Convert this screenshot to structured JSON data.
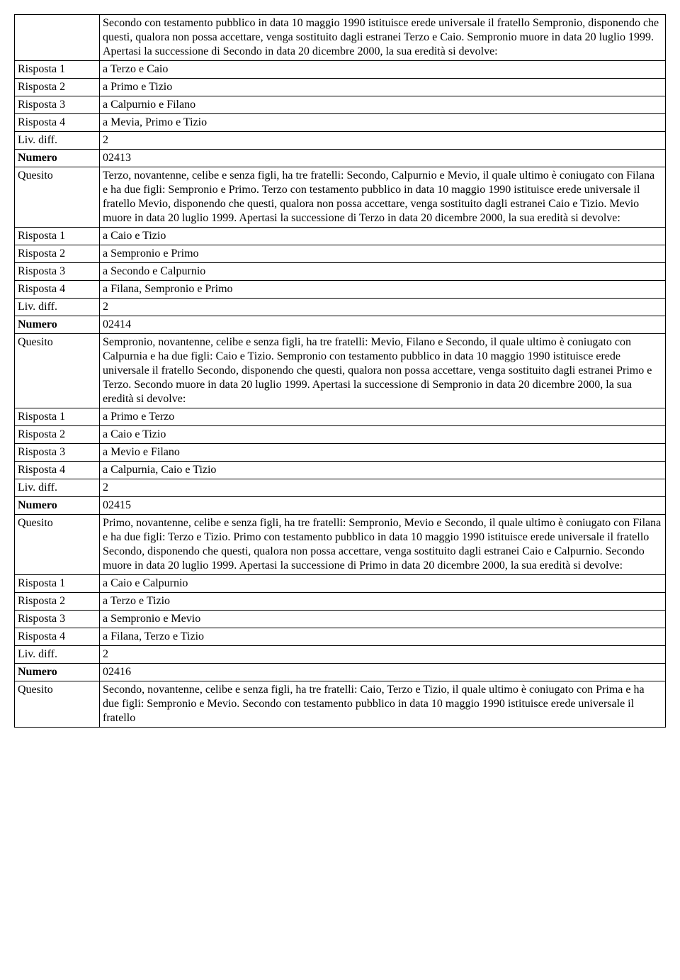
{
  "rows": [
    {
      "label": "",
      "value": "Secondo con testamento pubblico in data 10 maggio 1990 istituisce erede universale il fratello Sempronio, disponendo che questi, qualora non possa accettare, venga sostituito dagli estranei Terzo e Caio. Sempronio muore in data 20 luglio 1999. Apertasi la successione di Secondo in data 20 dicembre 2000, la sua eredità si devolve:"
    },
    {
      "label": "Risposta 1",
      "value": "a Terzo e Caio"
    },
    {
      "label": "Risposta 2",
      "value": "a Primo e Tizio"
    },
    {
      "label": "Risposta 3",
      "value": "a Calpurnio e Filano"
    },
    {
      "label": "Risposta 4",
      "value": "a Mevia, Primo e Tizio"
    },
    {
      "label": "Liv. diff.",
      "value": "2"
    },
    {
      "label": "Numero",
      "value": "02413"
    },
    {
      "label": "Quesito",
      "value": "Terzo, novantenne, celibe e senza figli, ha tre fratelli: Secondo, Calpurnio e Mevio, il quale ultimo è coniugato con Filana e ha due figli: Sempronio e Primo. Terzo con testamento pubblico in data 10 maggio 1990 istituisce erede universale il fratello Mevio, disponendo che questi, qualora non possa accettare, venga sostituito dagli estranei Caio e Tizio. Mevio muore in data 20 luglio 1999. Apertasi la successione di Terzo in data 20 dicembre 2000, la sua eredità si devolve:"
    },
    {
      "label": "Risposta 1",
      "value": "a Caio e Tizio"
    },
    {
      "label": "Risposta 2",
      "value": "a Sempronio e Primo"
    },
    {
      "label": "Risposta 3",
      "value": "a Secondo e Calpurnio"
    },
    {
      "label": "Risposta 4",
      "value": "a Filana, Sempronio e Primo"
    },
    {
      "label": "Liv. diff.",
      "value": "2"
    },
    {
      "label": "Numero",
      "value": "02414"
    },
    {
      "label": "Quesito",
      "value": "Sempronio, novantenne, celibe e senza figli, ha tre fratelli: Mevio, Filano e Secondo, il quale ultimo è coniugato con Calpurnia e ha due figli: Caio e Tizio. Sempronio con testamento pubblico in data 10 maggio 1990 istituisce erede universale il fratello Secondo, disponendo che questi, qualora non possa accettare, venga sostituito dagli estranei Primo e Terzo. Secondo muore in data 20 luglio 1999. Apertasi la successione di Sempronio in data 20 dicembre 2000, la sua eredità si devolve:"
    },
    {
      "label": "Risposta 1",
      "value": "a Primo e Terzo"
    },
    {
      "label": "Risposta 2",
      "value": "a Caio e Tizio"
    },
    {
      "label": "Risposta 3",
      "value": "a Mevio e Filano"
    },
    {
      "label": "Risposta 4",
      "value": "a Calpurnia, Caio e Tizio"
    },
    {
      "label": "Liv. diff.",
      "value": "2"
    },
    {
      "label": "Numero",
      "value": "02415"
    },
    {
      "label": "Quesito",
      "value": "Primo, novantenne, celibe e senza figli, ha tre fratelli: Sempronio, Mevio e Secondo, il quale ultimo è coniugato con Filana e ha due figli: Terzo e Tizio. Primo con testamento pubblico in data 10 maggio 1990 istituisce erede universale il fratello Secondo, disponendo che questi, qualora non possa accettare, venga sostituito dagli estranei Caio e Calpurnio. Secondo muore in data 20 luglio 1999. Apertasi la successione di Primo in data 20 dicembre 2000, la sua eredità si devolve:"
    },
    {
      "label": "Risposta 1",
      "value": "a Caio e Calpurnio"
    },
    {
      "label": "Risposta 2",
      "value": "a Terzo e Tizio"
    },
    {
      "label": "Risposta 3",
      "value": "a Sempronio e Mevio"
    },
    {
      "label": "Risposta 4",
      "value": "a Filana, Terzo e Tizio"
    },
    {
      "label": "Liv. diff.",
      "value": "2"
    },
    {
      "label": "Numero",
      "value": "02416"
    },
    {
      "label": "Quesito",
      "value": "Secondo, novantenne, celibe e senza figli, ha tre fratelli: Caio, Terzo e Tizio, il quale ultimo è coniugato con Prima e ha due figli: Sempronio e Mevio. Secondo con testamento pubblico in data 10 maggio 1990 istituisce erede universale il fratello"
    }
  ],
  "boldLabels": [
    "Numero"
  ]
}
